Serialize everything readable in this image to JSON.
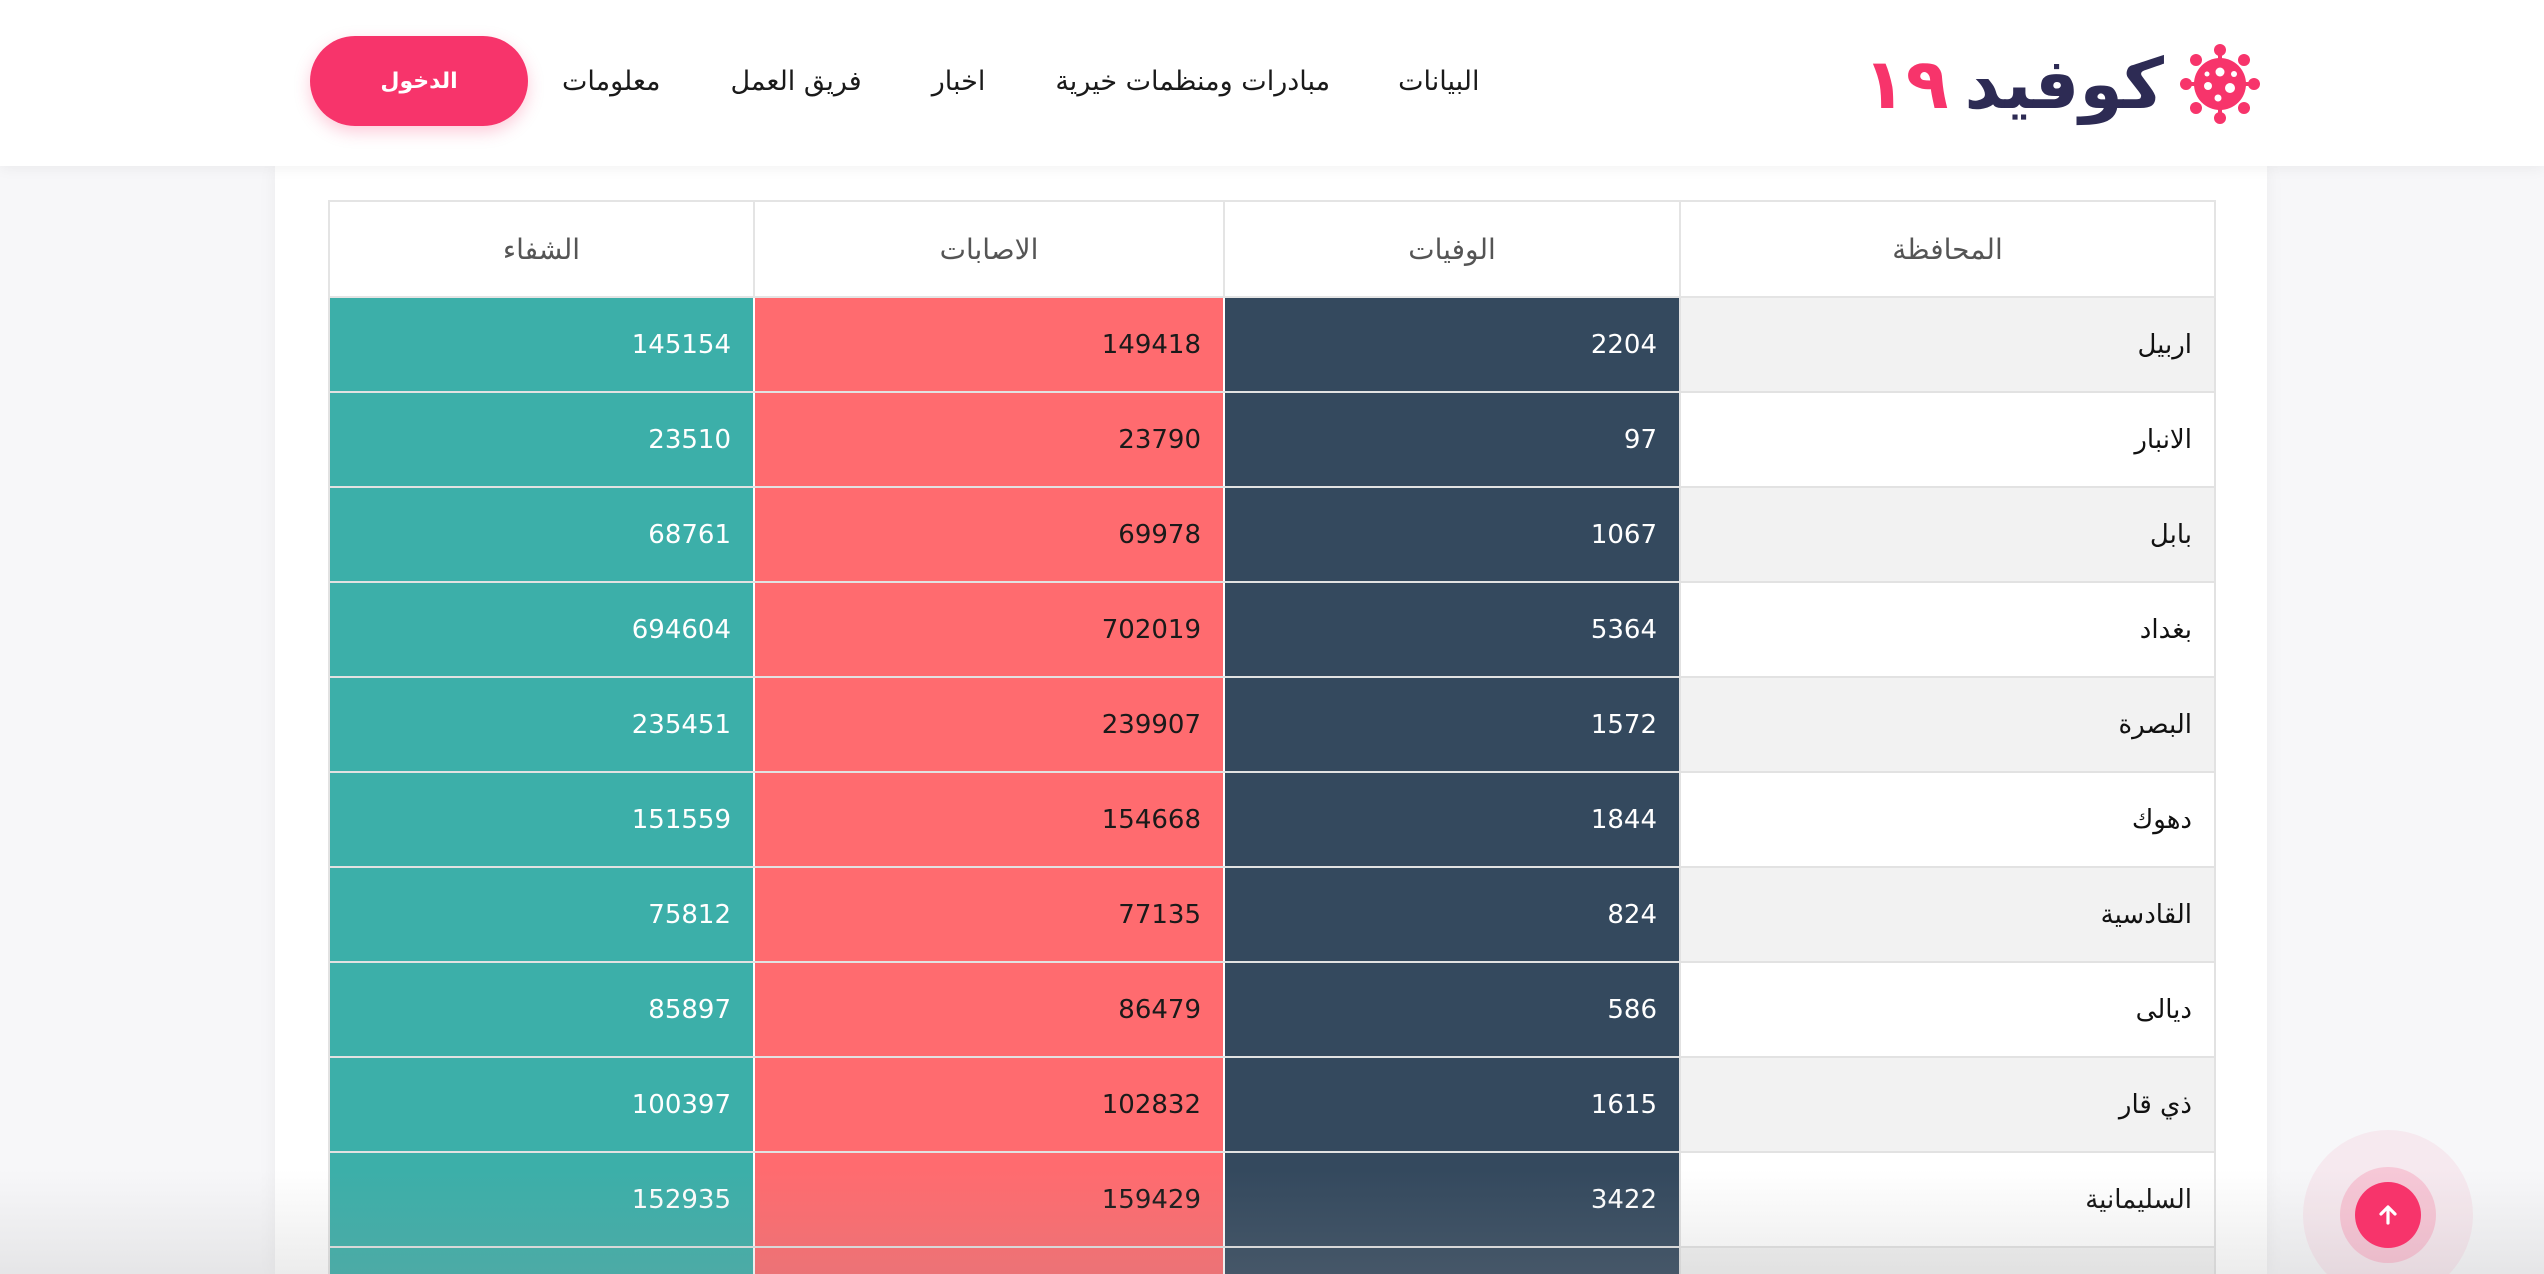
{
  "header": {
    "logo": {
      "word": "كوفيد",
      "number": "١٩",
      "icon": "virus-icon"
    },
    "nav": {
      "data": "البيانات",
      "initiatives": "مبادرات ومنظمات خيرية",
      "news": "اخبار",
      "team": "فريق العمل",
      "info": "معلومات"
    },
    "login_label": "الدخول"
  },
  "table": {
    "columns": {
      "governorate": "المحافظة",
      "deaths": "الوفيات",
      "cases": "الاصابات",
      "recovered": "الشفاء"
    },
    "rows": [
      {
        "governorate": "اربيل",
        "deaths": "2204",
        "cases": "149418",
        "recovered": "145154"
      },
      {
        "governorate": "الانبار",
        "deaths": "97",
        "cases": "23790",
        "recovered": "23510"
      },
      {
        "governorate": "بابل",
        "deaths": "1067",
        "cases": "69978",
        "recovered": "68761"
      },
      {
        "governorate": "بغداد",
        "deaths": "5364",
        "cases": "702019",
        "recovered": "694604"
      },
      {
        "governorate": "البصرة",
        "deaths": "1572",
        "cases": "239907",
        "recovered": "235451"
      },
      {
        "governorate": "دهوك",
        "deaths": "1844",
        "cases": "154668",
        "recovered": "151559"
      },
      {
        "governorate": "القادسية",
        "deaths": "824",
        "cases": "77135",
        "recovered": "75812"
      },
      {
        "governorate": "ديالى",
        "deaths": "586",
        "cases": "86479",
        "recovered": "85897"
      },
      {
        "governorate": "ذي قار",
        "deaths": "1615",
        "cases": "102832",
        "recovered": "100397"
      },
      {
        "governorate": "السليمانية",
        "deaths": "3422",
        "cases": "159429",
        "recovered": "152935"
      }
    ]
  },
  "colors": {
    "accent": "#f7346b",
    "deaths": "#34495e",
    "cases": "#ff6b6f",
    "recovered": "#3cafa9"
  },
  "icons": {
    "back_to_top": "arrow-up-icon"
  }
}
